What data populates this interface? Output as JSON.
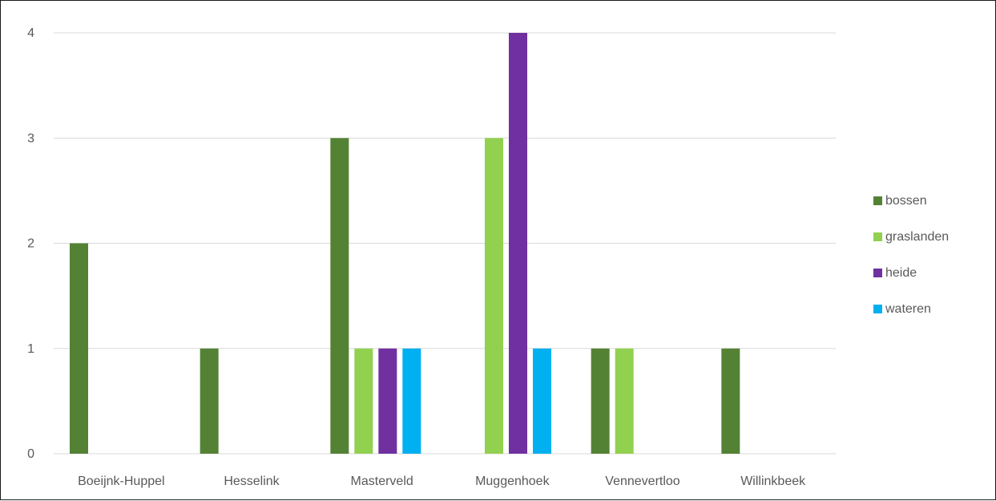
{
  "chart_data": {
    "type": "bar",
    "title": "",
    "xlabel": "",
    "ylabel": "",
    "categories": [
      "Boeijnk-Huppel",
      "Hesselink",
      "Masterveld",
      "Muggenhoek",
      "Vennevertloo",
      "Willinkbeek"
    ],
    "series": [
      {
        "name": "bossen",
        "color": "#548235",
        "values": [
          2,
          1,
          3,
          0,
          1,
          1
        ]
      },
      {
        "name": "graslanden",
        "color": "#92d050",
        "values": [
          0,
          0,
          1,
          3,
          1,
          0
        ]
      },
      {
        "name": "heide",
        "color": "#7030a0",
        "values": [
          0,
          0,
          1,
          4,
          0,
          0
        ]
      },
      {
        "name": "wateren",
        "color": "#00b0f0",
        "values": [
          0,
          0,
          1,
          1,
          0,
          0
        ]
      }
    ],
    "ylim": [
      0,
      4
    ],
    "yticks": [
      0,
      1,
      2,
      3,
      4
    ],
    "grid": true,
    "legend_position": "right"
  }
}
